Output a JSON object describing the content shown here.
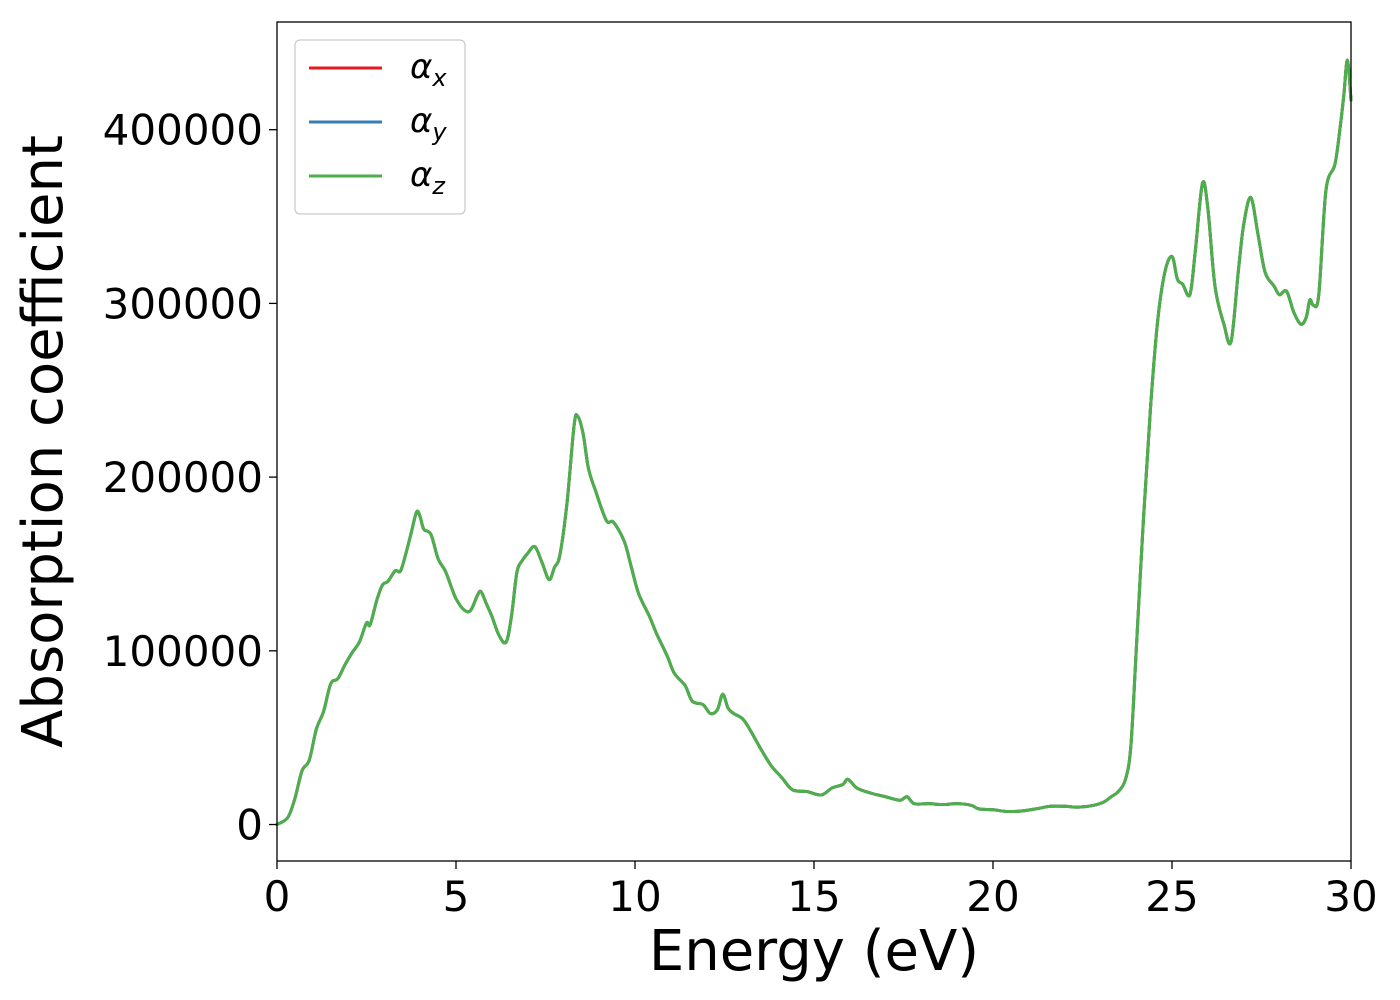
{
  "chart_data": {
    "type": "line",
    "xlabel": "Energy (eV)",
    "ylabel": "Absorption coefficient",
    "xlim": [
      0,
      30
    ],
    "ylim": [
      -21000,
      462000
    ],
    "xticks": [
      0,
      5,
      10,
      15,
      20,
      25,
      30
    ],
    "xtick_labels": [
      "0",
      "5",
      "10",
      "15",
      "20",
      "25",
      "30"
    ],
    "yticks": [
      0,
      100000,
      200000,
      300000,
      400000
    ],
    "ytick_labels": [
      "0",
      "100000",
      "200000",
      "300000",
      "400000"
    ],
    "grid": false,
    "legend": {
      "placement": "top-left",
      "entries": [
        {
          "symbol": "α",
          "sub": "x",
          "color": "#e41a1c"
        },
        {
          "symbol": "α",
          "sub": "y",
          "color": "#377eb8"
        },
        {
          "symbol": "α",
          "sub": "z",
          "color": "#4daf4a"
        }
      ]
    },
    "x": [
      0,
      0.3,
      0.5,
      0.7,
      0.9,
      1.1,
      1.3,
      1.5,
      1.7,
      1.9,
      2.1,
      2.3,
      2.5,
      2.6,
      2.8,
      2.95,
      3.1,
      3.3,
      3.45,
      3.6,
      3.75,
      3.9,
      4.0,
      4.1,
      4.3,
      4.5,
      4.7,
      4.9,
      5.0,
      5.2,
      5.4,
      5.6,
      5.7,
      5.85,
      6.0,
      6.2,
      6.4,
      6.55,
      6.7,
      6.85,
      7.0,
      7.2,
      7.4,
      7.6,
      7.75,
      7.9,
      8.1,
      8.3,
      8.4,
      8.55,
      8.7,
      8.9,
      9.2,
      9.4,
      9.7,
      9.9,
      10.1,
      10.4,
      10.6,
      10.9,
      11.1,
      11.4,
      11.6,
      11.9,
      12.1,
      12.3,
      12.45,
      12.6,
      12.75,
      13.0,
      13.2,
      13.5,
      13.8,
      14.1,
      14.4,
      14.8,
      15.2,
      15.5,
      15.8,
      15.95,
      16.2,
      16.6,
      17.0,
      17.4,
      17.6,
      17.8,
      18.2,
      18.6,
      19.0,
      19.4,
      19.6,
      20.0,
      20.4,
      20.8,
      21.2,
      21.6,
      22.0,
      22.4,
      22.8,
      23.1,
      23.3,
      23.5,
      23.7,
      23.85,
      24.0,
      24.2,
      24.4,
      24.6,
      24.8,
      25.0,
      25.15,
      25.3,
      25.5,
      25.65,
      25.85,
      26.0,
      26.2,
      26.45,
      26.65,
      26.85,
      27.0,
      27.2,
      27.4,
      27.6,
      27.85,
      28.0,
      28.2,
      28.4,
      28.6,
      28.75,
      28.85,
      28.95,
      29.1,
      29.3,
      29.55,
      29.7,
      29.8,
      29.9,
      30.0
    ],
    "series": [
      {
        "name": "α_x",
        "color": "#e41a1c",
        "values": [
          0,
          4000,
          15000,
          31000,
          37000,
          55000,
          65000,
          81000,
          84000,
          92000,
          99000,
          105000,
          116000,
          115000,
          130000,
          138000,
          140000,
          146000,
          146000,
          156000,
          168000,
          180000,
          177000,
          170000,
          167000,
          153000,
          146000,
          135000,
          130000,
          124000,
          123000,
          132000,
          134000,
          127000,
          120000,
          109000,
          105000,
          120000,
          145000,
          152000,
          156000,
          160000,
          151000,
          141000,
          148000,
          155000,
          185000,
          230000,
          235000,
          225000,
          205000,
          192000,
          175000,
          174000,
          163000,
          148000,
          133000,
          120000,
          110000,
          97000,
          87000,
          80000,
          71000,
          69000,
          64000,
          66000,
          75000,
          67000,
          64000,
          61000,
          55000,
          44000,
          34000,
          27000,
          20000,
          19000,
          17000,
          21000,
          23000,
          26000,
          21000,
          18000,
          16000,
          14000,
          16000,
          12000,
          12000,
          11500,
          12000,
          11000,
          9000,
          8500,
          7500,
          7800,
          9000,
          10500,
          10500,
          10000,
          11000,
          13000,
          16000,
          19000,
          26000,
          45000,
          100000,
          175000,
          240000,
          290000,
          318000,
          327000,
          314000,
          311000,
          305000,
          330000,
          369000,
          355000,
          310000,
          288000,
          278000,
          318000,
          345000,
          361000,
          340000,
          318000,
          310000,
          305000,
          307000,
          295000,
          288000,
          292000,
          302000,
          299000,
          305000,
          365000,
          380000,
          402000,
          420000,
          440000,
          417000
        ]
      },
      {
        "name": "α_y",
        "color": "#377eb8",
        "values": [
          0,
          4000,
          15000,
          31000,
          37000,
          55000,
          65000,
          81000,
          84000,
          92000,
          99000,
          105000,
          116000,
          115000,
          130000,
          138000,
          140000,
          146000,
          146000,
          156000,
          168000,
          180000,
          177000,
          170000,
          167000,
          153000,
          146000,
          135000,
          130000,
          124000,
          123000,
          132000,
          134000,
          127000,
          120000,
          109000,
          105000,
          120000,
          145000,
          152000,
          156000,
          160000,
          151000,
          141000,
          148000,
          155000,
          185000,
          230000,
          235000,
          225000,
          205000,
          192000,
          175000,
          174000,
          163000,
          148000,
          133000,
          120000,
          110000,
          97000,
          87000,
          80000,
          71000,
          69000,
          64000,
          66000,
          75000,
          67000,
          64000,
          61000,
          55000,
          44000,
          34000,
          27000,
          20000,
          19000,
          17000,
          21000,
          23000,
          26000,
          21000,
          18000,
          16000,
          14000,
          16000,
          12000,
          12000,
          11500,
          12000,
          11000,
          9000,
          8500,
          7500,
          7800,
          9000,
          10500,
          10500,
          10000,
          11000,
          13000,
          16000,
          19000,
          26000,
          45000,
          100000,
          175000,
          240000,
          290000,
          318000,
          327000,
          314000,
          311000,
          305000,
          330000,
          369000,
          355000,
          310000,
          288000,
          278000,
          318000,
          345000,
          361000,
          340000,
          318000,
          310000,
          305000,
          307000,
          295000,
          288000,
          292000,
          302000,
          299000,
          305000,
          365000,
          380000,
          402000,
          420000,
          440000,
          417000
        ]
      },
      {
        "name": "α_z",
        "color": "#4daf4a",
        "values": [
          0,
          4000,
          15000,
          31000,
          37000,
          55000,
          65000,
          81000,
          84000,
          92000,
          99000,
          105000,
          116000,
          115000,
          130000,
          138000,
          140000,
          146000,
          146000,
          156000,
          168000,
          180000,
          177000,
          170000,
          167000,
          153000,
          146000,
          135000,
          130000,
          124000,
          123000,
          132000,
          134000,
          127000,
          120000,
          109000,
          105000,
          120000,
          145000,
          152000,
          156000,
          160000,
          151000,
          141000,
          148000,
          155000,
          185000,
          230000,
          235000,
          225000,
          205000,
          192000,
          175000,
          174000,
          163000,
          148000,
          133000,
          120000,
          110000,
          97000,
          87000,
          80000,
          71000,
          69000,
          64000,
          66000,
          75000,
          67000,
          64000,
          61000,
          55000,
          44000,
          34000,
          27000,
          20000,
          19000,
          17000,
          21000,
          23000,
          26000,
          21000,
          18000,
          16000,
          14000,
          16000,
          12000,
          12000,
          11500,
          12000,
          11000,
          9000,
          8500,
          7500,
          7800,
          9000,
          10500,
          10500,
          10000,
          11000,
          13000,
          16000,
          19000,
          26000,
          45000,
          100000,
          175000,
          240000,
          290000,
          318000,
          327000,
          314000,
          311000,
          305000,
          330000,
          369000,
          355000,
          310000,
          288000,
          278000,
          318000,
          345000,
          361000,
          340000,
          318000,
          310000,
          305000,
          307000,
          295000,
          288000,
          292000,
          302000,
          299000,
          305000,
          365000,
          380000,
          402000,
          420000,
          440000,
          417000
        ]
      }
    ]
  }
}
